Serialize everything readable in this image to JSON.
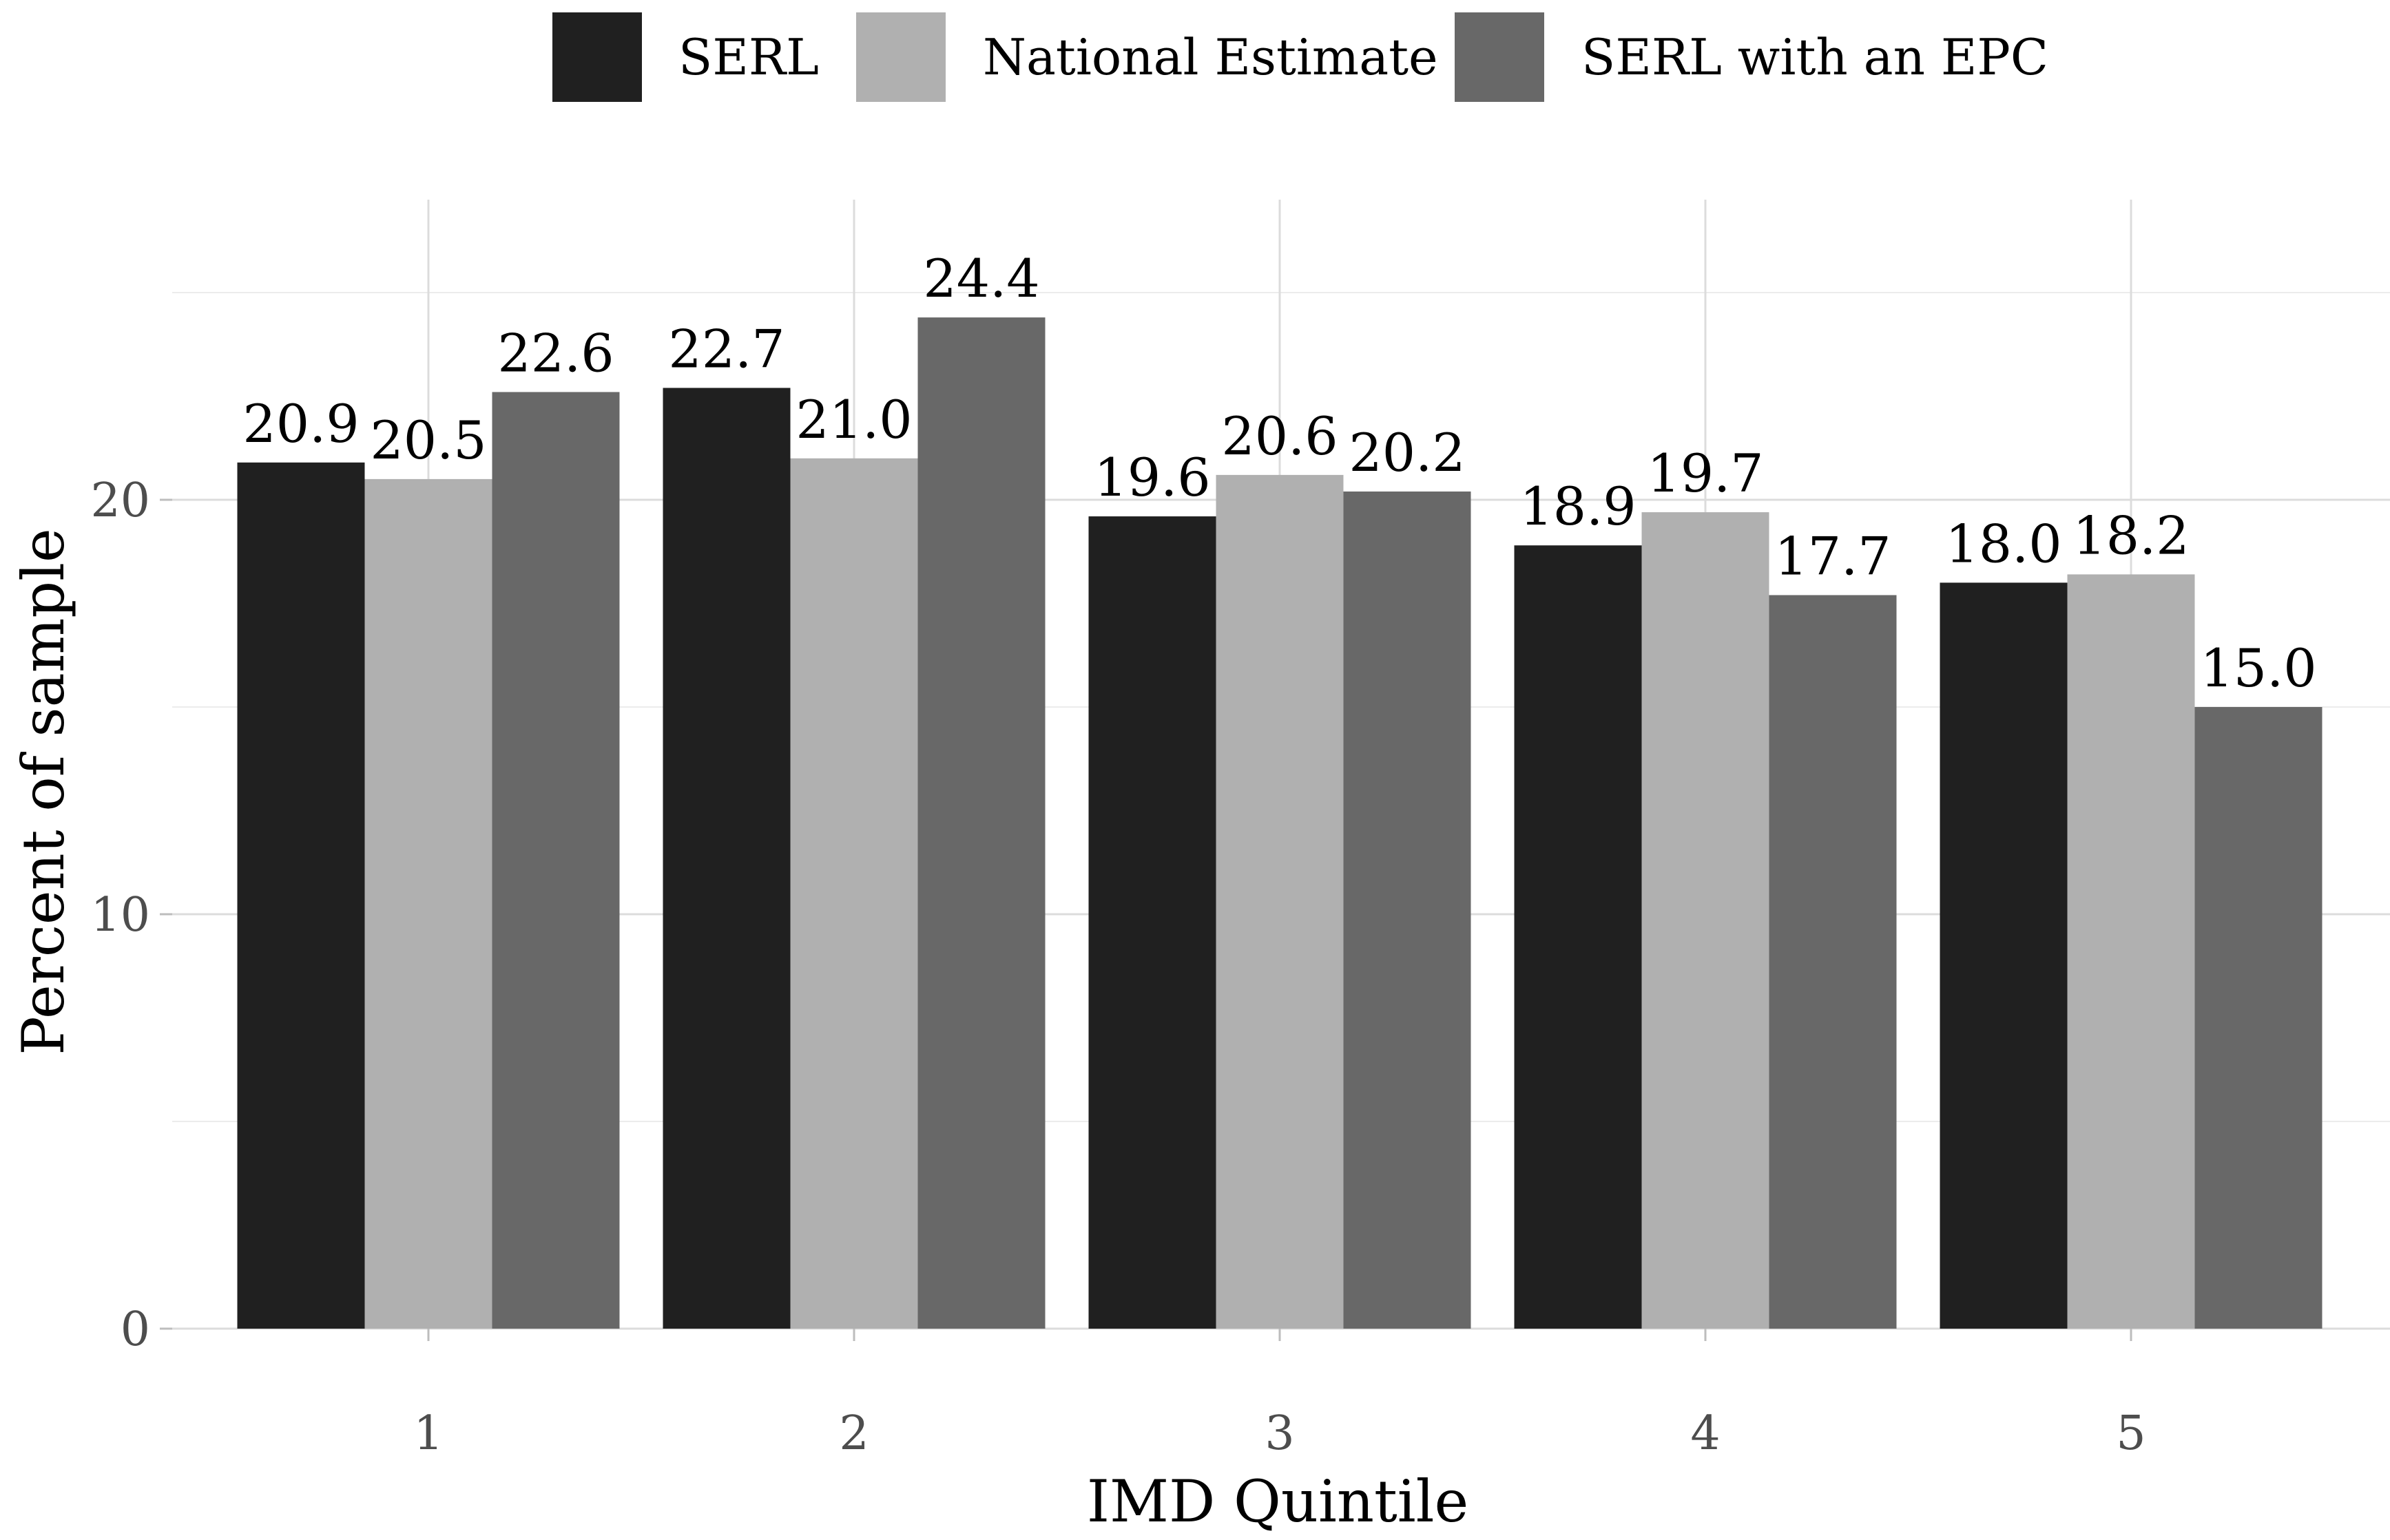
{
  "chart_data": {
    "type": "bar",
    "title": "",
    "xlabel": "IMD Quintile",
    "ylabel": "Percent of sample",
    "categories": [
      "1",
      "2",
      "3",
      "4",
      "5"
    ],
    "series": [
      {
        "name": "SERL",
        "color": "#202020",
        "values": [
          20.9,
          22.7,
          19.6,
          18.9,
          18.0
        ],
        "labels": [
          "20.9",
          "22.7",
          "19.6",
          "18.9",
          "18.0"
        ]
      },
      {
        "name": "National Estimate",
        "color": "#b0b0b0",
        "values": [
          20.5,
          21.0,
          20.6,
          19.7,
          18.2
        ],
        "labels": [
          "20.5",
          "21.0",
          "20.6",
          "19.7",
          "18.2"
        ]
      },
      {
        "name": "SERL with an EPC",
        "color": "#686868",
        "values": [
          22.6,
          24.4,
          20.2,
          17.7,
          15.0
        ],
        "labels": [
          "22.6",
          "24.4",
          "20.2",
          "17.7",
          "15.0"
        ]
      }
    ],
    "ylim": [
      0,
      27
    ],
    "yticks": [
      0,
      10,
      20
    ],
    "ytick_labels": [
      "0",
      "10",
      "20"
    ],
    "minor_grid": [
      5,
      15,
      25
    ],
    "grid": true,
    "legend_position": "top"
  }
}
